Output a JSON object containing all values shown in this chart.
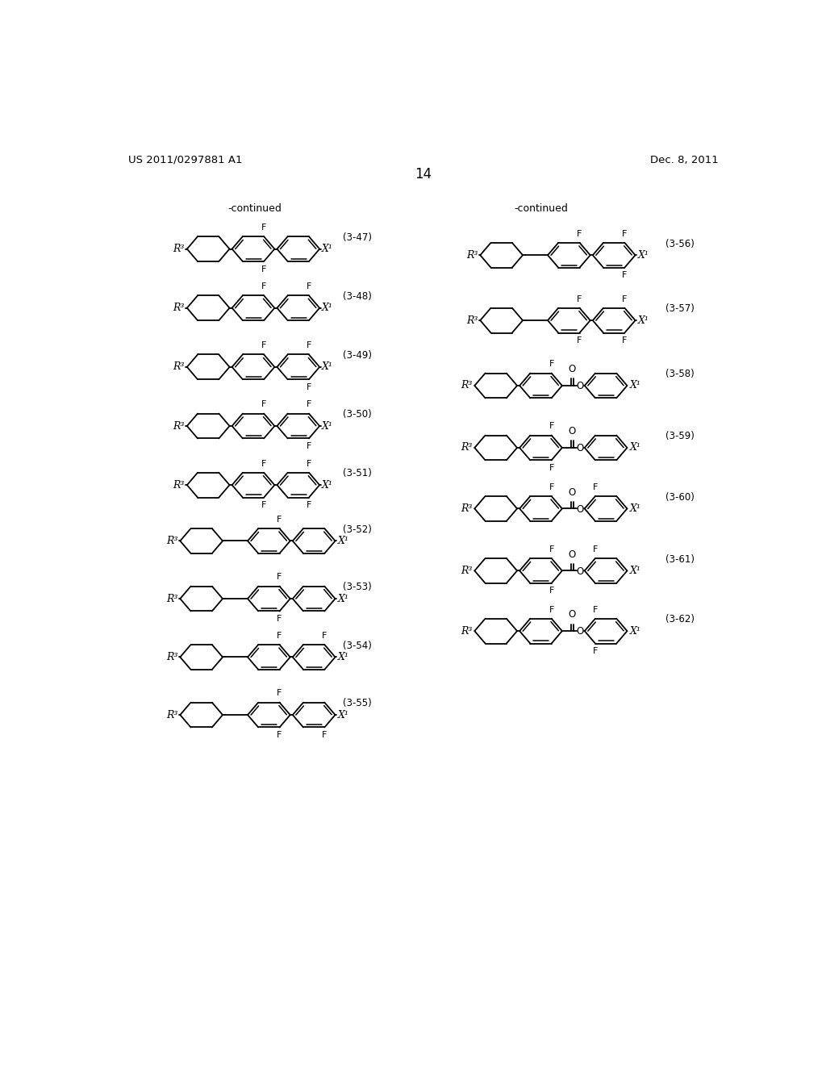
{
  "background_color": "#ffffff",
  "page_number": "14",
  "patent_left": "US 2011/0297881 A1",
  "patent_right": "Dec. 8, 2011",
  "continued_left": "-continued",
  "continued_right": "-continued",
  "left_compounds": [
    {
      "label": "(3-47)",
      "f_top1": true,
      "f_bot1": true,
      "f_top2": false,
      "f_bot2": false,
      "chain": false
    },
    {
      "label": "(3-48)",
      "f_top1": true,
      "f_bot1": false,
      "f_top2": true,
      "f_bot2": false,
      "chain": false
    },
    {
      "label": "(3-49)",
      "f_top1": true,
      "f_bot1": false,
      "f_top2": true,
      "f_bot2": true,
      "chain": false
    },
    {
      "label": "(3-50)",
      "f_top1": true,
      "f_bot1": false,
      "f_top2": true,
      "f_bot2": true,
      "chain": false
    },
    {
      "label": "(3-51)",
      "f_top1": true,
      "f_bot1": true,
      "f_top2": true,
      "f_bot2": true,
      "chain": false
    },
    {
      "label": "(3-52)",
      "f_top1": true,
      "f_bot1": false,
      "f_top2": false,
      "f_bot2": false,
      "chain": true
    },
    {
      "label": "(3-53)",
      "f_top1": true,
      "f_bot1": true,
      "f_top2": false,
      "f_bot2": false,
      "chain": true
    },
    {
      "label": "(3-54)",
      "f_top1": true,
      "f_bot1": false,
      "f_top2": true,
      "f_bot2": false,
      "chain": true
    },
    {
      "label": "(3-55)",
      "f_top1": true,
      "f_bot1": true,
      "f_top2": false,
      "f_bot2": true,
      "chain": true
    }
  ],
  "right_compounds_chain": [
    {
      "label": "(3-56)",
      "f_top1": true,
      "f_bot1": false,
      "f_top2": true,
      "f_bot2": true
    },
    {
      "label": "(3-57)",
      "f_top1": true,
      "f_bot1": true,
      "f_top2": true,
      "f_bot2": true
    }
  ],
  "right_compounds_ester": [
    {
      "label": "(3-58)",
      "f_top1": true,
      "f_bot1": false,
      "f_top2": false,
      "f_bot2": false
    },
    {
      "label": "(3-59)",
      "f_top1": true,
      "f_bot1": true,
      "f_top2": false,
      "f_bot2": false
    },
    {
      "label": "(3-60)",
      "f_top1": true,
      "f_bot1": false,
      "f_top2": true,
      "f_bot2": false
    },
    {
      "label": "(3-61)",
      "f_top1": true,
      "f_bot1": true,
      "f_top2": true,
      "f_bot2": false
    },
    {
      "label": "(3-62)",
      "f_top1": true,
      "f_bot1": false,
      "f_top2": true,
      "f_bot2": true
    }
  ]
}
